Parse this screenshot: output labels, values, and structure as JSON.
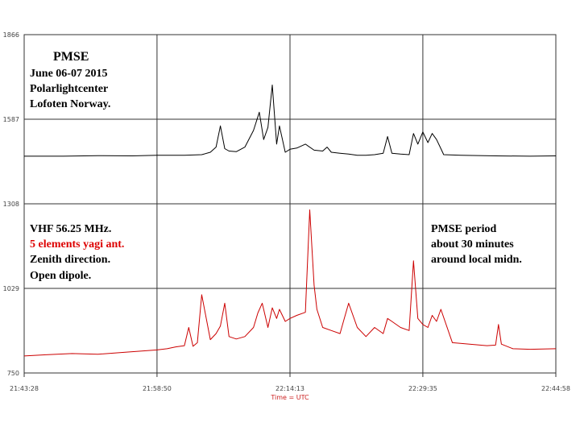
{
  "chart_data": {
    "type": "line",
    "xlabel": "Time = UTC",
    "ylabel": "",
    "x_ticks": [
      "21:43:28",
      "21:58:50",
      "22:14:13",
      "22:29:35",
      "22:44:58"
    ],
    "y_ticks": [
      "1866",
      "1587",
      "1308",
      "1029",
      "750"
    ],
    "ylim": [
      750,
      1866
    ],
    "xlim": [
      "21:43:28",
      "22:44:58"
    ],
    "grid": true,
    "series": [
      {
        "color": "#000000",
        "x": [
          "21:43:28",
          "21:48:00",
          "21:52:00",
          "21:56:00",
          "21:58:50",
          "22:02:00",
          "22:04:00",
          "22:05:00",
          "22:05:40",
          "22:06:10",
          "22:06:40",
          "22:07:10",
          "22:08:00",
          "22:09:00",
          "22:10:00",
          "22:10:40",
          "22:11:10",
          "22:11:40",
          "22:12:10",
          "22:12:40",
          "22:13:00",
          "22:13:40",
          "22:14:13",
          "22:15:00",
          "22:16:00",
          "22:17:00",
          "22:18:00",
          "22:18:30",
          "22:19:00",
          "22:20:00",
          "22:21:00",
          "22:22:00",
          "22:23:00",
          "22:24:00",
          "22:25:00",
          "22:25:30",
          "22:26:00",
          "22:27:00",
          "22:28:00",
          "22:28:30",
          "22:29:00",
          "22:29:35",
          "22:30:10",
          "22:30:40",
          "22:31:10",
          "22:31:40",
          "22:32:00",
          "22:34:00",
          "22:38:00",
          "22:42:00",
          "22:44:58"
        ],
        "y": [
          1465,
          1465,
          1467,
          1466,
          1468,
          1468,
          1470,
          1478,
          1495,
          1565,
          1490,
          1482,
          1480,
          1495,
          1550,
          1610,
          1520,
          1560,
          1700,
          1505,
          1565,
          1478,
          1488,
          1492,
          1505,
          1485,
          1482,
          1495,
          1478,
          1475,
          1472,
          1468,
          1468,
          1470,
          1475,
          1530,
          1475,
          1472,
          1470,
          1540,
          1505,
          1545,
          1510,
          1540,
          1520,
          1490,
          1470,
          1468,
          1466,
          1465,
          1466
        ]
      },
      {
        "color": "#cc0000",
        "x": [
          "21:43:28",
          "21:46:00",
          "21:49:00",
          "21:52:00",
          "21:55:00",
          "21:58:50",
          "22:00:00",
          "22:01:00",
          "22:02:00",
          "22:02:30",
          "22:03:00",
          "22:03:30",
          "22:04:00",
          "22:05:00",
          "22:05:40",
          "22:06:10",
          "22:06:40",
          "22:07:10",
          "22:08:00",
          "22:09:00",
          "22:10:00",
          "22:10:30",
          "22:11:00",
          "22:11:40",
          "22:12:10",
          "22:12:40",
          "22:13:00",
          "22:13:40",
          "22:14:13",
          "22:15:00",
          "22:16:00",
          "22:16:30",
          "22:17:00",
          "22:17:20",
          "22:18:00",
          "22:19:00",
          "22:20:00",
          "22:20:30",
          "22:21:00",
          "22:22:00",
          "22:23:00",
          "22:24:00",
          "22:25:00",
          "22:25:30",
          "22:26:00",
          "22:27:00",
          "22:28:00",
          "22:28:30",
          "22:29:00",
          "22:29:35",
          "22:30:10",
          "22:30:40",
          "22:31:10",
          "22:31:40",
          "22:33:00",
          "22:35:00",
          "22:37:00",
          "22:38:00",
          "22:38:20",
          "22:38:40",
          "22:40:00",
          "22:42:00",
          "22:44:58"
        ],
        "y": [
          806,
          810,
          814,
          812,
          818,
          826,
          830,
          836,
          840,
          900,
          838,
          850,
          1008,
          860,
          880,
          905,
          980,
          870,
          862,
          870,
          900,
          948,
          980,
          900,
          965,
          930,
          960,
          920,
          930,
          940,
          950,
          1288,
          1040,
          960,
          900,
          890,
          880,
          930,
          980,
          900,
          870,
          900,
          880,
          930,
          920,
          900,
          890,
          1120,
          930,
          910,
          900,
          940,
          920,
          960,
          850,
          845,
          840,
          842,
          910,
          845,
          830,
          828,
          830
        ]
      }
    ]
  },
  "annotations": {
    "title": "PMSE",
    "date": "June 06-07 2015",
    "place": "Polarlightcenter",
    "location": "Lofoten Norway.",
    "freq": "VHF 56.25 MHz.",
    "antenna": "5 elements yagi ant.",
    "zenith": "Zenith direction.",
    "dipole": "Open dipole.",
    "period1": "PMSE period",
    "period2": "about 30 minutes",
    "period3": "around local midn."
  }
}
